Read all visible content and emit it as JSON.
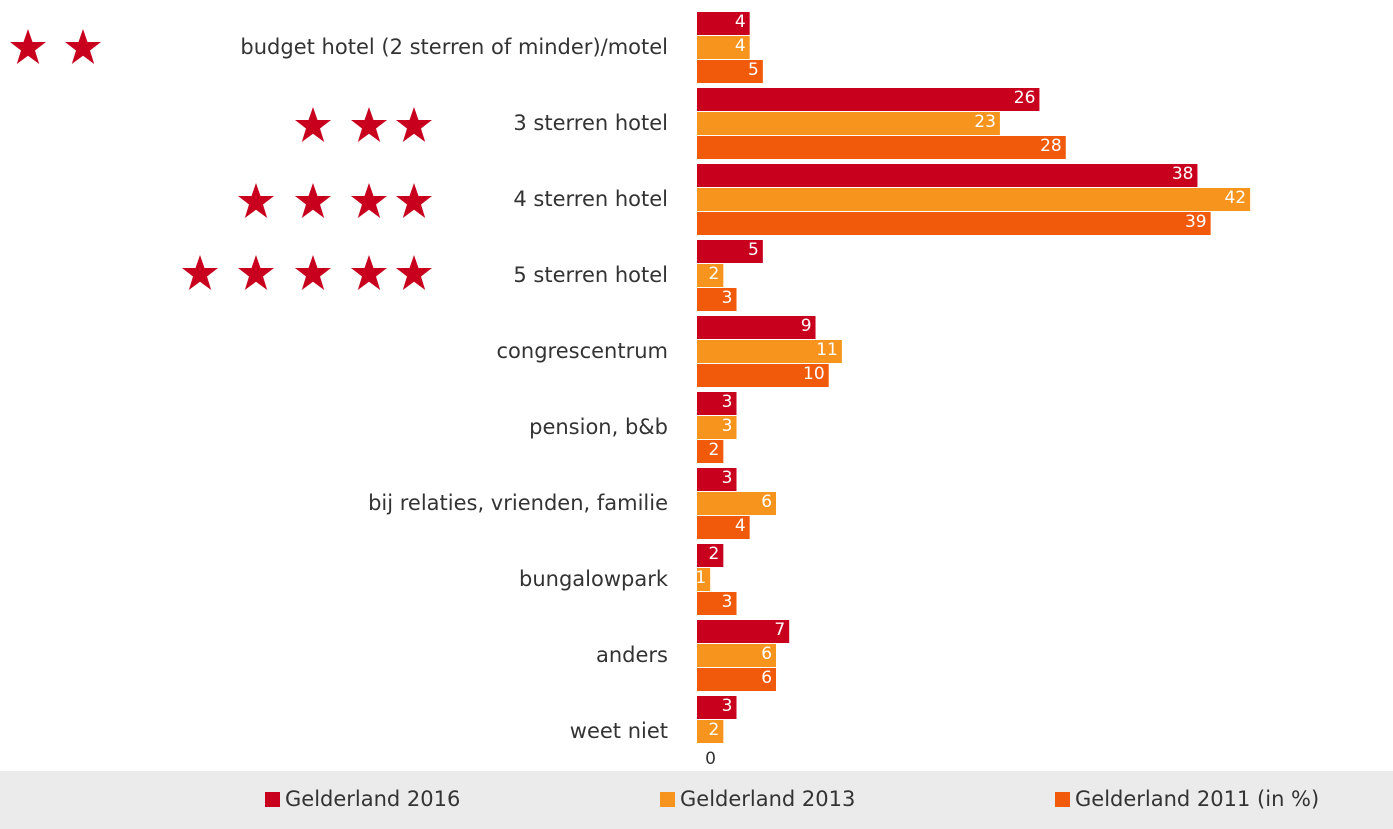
{
  "chart_data": {
    "type": "bar",
    "orientation": "horizontal",
    "categories": [
      "budget hotel (2 sterren of minder)/motel",
      "3 sterren hotel",
      "4 sterren hotel",
      "5 sterren hotel",
      "congrescentrum",
      "pension, b&b",
      "bij relaties, vrienden, familie",
      "bungalowpark",
      "anders",
      "weet niet"
    ],
    "series": [
      {
        "name": "Gelderland 2016",
        "color": "#c8001e",
        "values": [
          4,
          26,
          38,
          5,
          9,
          3,
          3,
          2,
          7,
          3
        ]
      },
      {
        "name": "Gelderland 2013",
        "color": "#f7941d",
        "values": [
          4,
          23,
          42,
          2,
          11,
          3,
          6,
          1,
          6,
          2
        ]
      },
      {
        "name": "Gelderland 2011 (in %)",
        "color": "#f05a0a",
        "values": [
          5,
          28,
          39,
          3,
          10,
          2,
          4,
          3,
          6,
          0
        ]
      }
    ],
    "legend": "bottom"
  }
}
